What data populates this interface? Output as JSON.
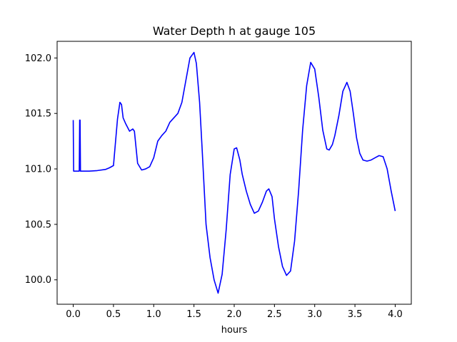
{
  "chart_data": {
    "type": "line",
    "title": "Water Depth h at gauge 105",
    "xlabel": "hours",
    "ylabel": "",
    "xlim": [
      -0.2,
      4.2
    ],
    "ylim": [
      99.78,
      102.15
    ],
    "xticks": [
      0.0,
      0.5,
      1.0,
      1.5,
      2.0,
      2.5,
      3.0,
      3.5,
      4.0
    ],
    "xtick_labels": [
      "0.0",
      "0.5",
      "1.0",
      "1.5",
      "2.0",
      "2.5",
      "3.0",
      "3.5",
      "4.0"
    ],
    "yticks": [
      100.0,
      100.5,
      101.0,
      101.5,
      102.0
    ],
    "ytick_labels": [
      "100.0",
      "100.5",
      "101.0",
      "101.5",
      "102.0"
    ],
    "grid": false,
    "series": [
      {
        "color": "#0000ff",
        "points": [
          [
            0.0,
            101.44
          ],
          [
            0.005,
            100.98
          ],
          [
            0.075,
            100.98
          ],
          [
            0.08,
            101.44
          ],
          [
            0.085,
            101.44
          ],
          [
            0.09,
            100.98
          ],
          [
            0.2,
            100.98
          ],
          [
            0.3,
            100.985
          ],
          [
            0.4,
            100.995
          ],
          [
            0.45,
            101.01
          ],
          [
            0.5,
            101.03
          ],
          [
            0.55,
            101.45
          ],
          [
            0.58,
            101.6
          ],
          [
            0.6,
            101.58
          ],
          [
            0.62,
            101.46
          ],
          [
            0.65,
            101.41
          ],
          [
            0.7,
            101.34
          ],
          [
            0.74,
            101.36
          ],
          [
            0.76,
            101.34
          ],
          [
            0.8,
            101.05
          ],
          [
            0.85,
            100.99
          ],
          [
            0.9,
            101.0
          ],
          [
            0.95,
            101.02
          ],
          [
            1.0,
            101.1
          ],
          [
            1.05,
            101.25
          ],
          [
            1.1,
            101.3
          ],
          [
            1.15,
            101.34
          ],
          [
            1.2,
            101.42
          ],
          [
            1.25,
            101.46
          ],
          [
            1.3,
            101.5
          ],
          [
            1.35,
            101.6
          ],
          [
            1.4,
            101.8
          ],
          [
            1.45,
            102.0
          ],
          [
            1.5,
            102.05
          ],
          [
            1.53,
            101.95
          ],
          [
            1.57,
            101.6
          ],
          [
            1.6,
            101.2
          ],
          [
            1.65,
            100.5
          ],
          [
            1.7,
            100.2
          ],
          [
            1.75,
            100.0
          ],
          [
            1.8,
            99.88
          ],
          [
            1.85,
            100.05
          ],
          [
            1.9,
            100.45
          ],
          [
            1.95,
            100.95
          ],
          [
            2.0,
            101.18
          ],
          [
            2.03,
            101.19
          ],
          [
            2.07,
            101.08
          ],
          [
            2.1,
            100.95
          ],
          [
            2.15,
            100.8
          ],
          [
            2.2,
            100.68
          ],
          [
            2.25,
            100.6
          ],
          [
            2.3,
            100.62
          ],
          [
            2.35,
            100.7
          ],
          [
            2.4,
            100.8
          ],
          [
            2.43,
            100.82
          ],
          [
            2.47,
            100.75
          ],
          [
            2.5,
            100.55
          ],
          [
            2.55,
            100.3
          ],
          [
            2.6,
            100.12
          ],
          [
            2.65,
            100.04
          ],
          [
            2.7,
            100.08
          ],
          [
            2.75,
            100.35
          ],
          [
            2.8,
            100.8
          ],
          [
            2.85,
            101.35
          ],
          [
            2.9,
            101.75
          ],
          [
            2.95,
            101.96
          ],
          [
            3.0,
            101.9
          ],
          [
            3.05,
            101.65
          ],
          [
            3.1,
            101.35
          ],
          [
            3.15,
            101.18
          ],
          [
            3.18,
            101.17
          ],
          [
            3.22,
            101.22
          ],
          [
            3.25,
            101.3
          ],
          [
            3.3,
            101.48
          ],
          [
            3.35,
            101.7
          ],
          [
            3.4,
            101.78
          ],
          [
            3.44,
            101.7
          ],
          [
            3.48,
            101.5
          ],
          [
            3.52,
            101.28
          ],
          [
            3.56,
            101.14
          ],
          [
            3.6,
            101.08
          ],
          [
            3.65,
            101.07
          ],
          [
            3.7,
            101.08
          ],
          [
            3.75,
            101.1
          ],
          [
            3.8,
            101.12
          ],
          [
            3.85,
            101.11
          ],
          [
            3.9,
            101.0
          ],
          [
            3.95,
            100.8
          ],
          [
            4.0,
            100.62
          ]
        ]
      }
    ]
  }
}
